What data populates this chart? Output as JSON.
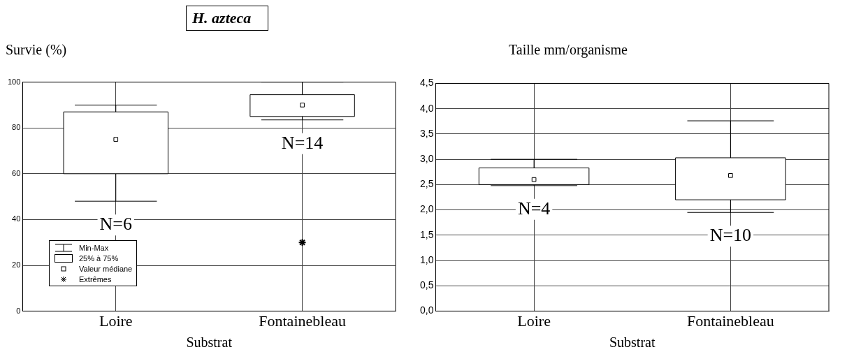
{
  "chart_data": [
    {
      "type": "box",
      "title": "H. azteca",
      "ylabel": "Survie (%)",
      "xlabel": "Substrat",
      "categories": [
        "Loire",
        "Fontainebleau"
      ],
      "boxes": [
        {
          "low": 48,
          "q1": 60,
          "median": 75,
          "q3": 87,
          "high": 90
        },
        {
          "low": 83.5,
          "q1": 85,
          "median": 90,
          "q3": 94.5,
          "high": 100,
          "outliers": [
            30
          ]
        }
      ],
      "ylim": [
        0,
        100
      ],
      "yticks": [
        0,
        20,
        40,
        60,
        80,
        100
      ],
      "grid": true,
      "marker": "square",
      "annotations": [
        "N=6",
        "N=14",
        "Min-Max",
        "25% à 75%",
        "Valeur médiane",
        "Extrêmes"
      ]
    },
    {
      "type": "box",
      "ylabel": "Taille mm/organisme",
      "xlabel": "Substrat",
      "categories": [
        "Loire",
        "Fontainebleau"
      ],
      "boxes": [
        {
          "low": 2.48,
          "q1": 2.5,
          "median": 2.6,
          "q3": 2.83,
          "high": 3.0
        },
        {
          "low": 1.95,
          "q1": 2.2,
          "median": 2.68,
          "q3": 3.03,
          "high": 3.76
        }
      ],
      "ylim": [
        0,
        4.5
      ],
      "yticks": [
        {
          "value": 0,
          "label": "0,0"
        },
        {
          "value": 0.5,
          "label": "0,5"
        },
        {
          "value": 1,
          "label": "1,0"
        },
        {
          "value": 1.5,
          "label": "1,5"
        },
        {
          "value": 2,
          "label": "2,0"
        },
        {
          "value": 2.5,
          "label": "2,5"
        },
        {
          "value": 3,
          "label": "3,0"
        },
        {
          "value": 3.5,
          "label": "3,5"
        },
        {
          "value": 4,
          "label": "4,0"
        },
        {
          "value": 4.5,
          "label": "4,5"
        }
      ],
      "grid": true,
      "marker": "square",
      "annotations": [
        "N=4",
        "N=10"
      ]
    }
  ]
}
